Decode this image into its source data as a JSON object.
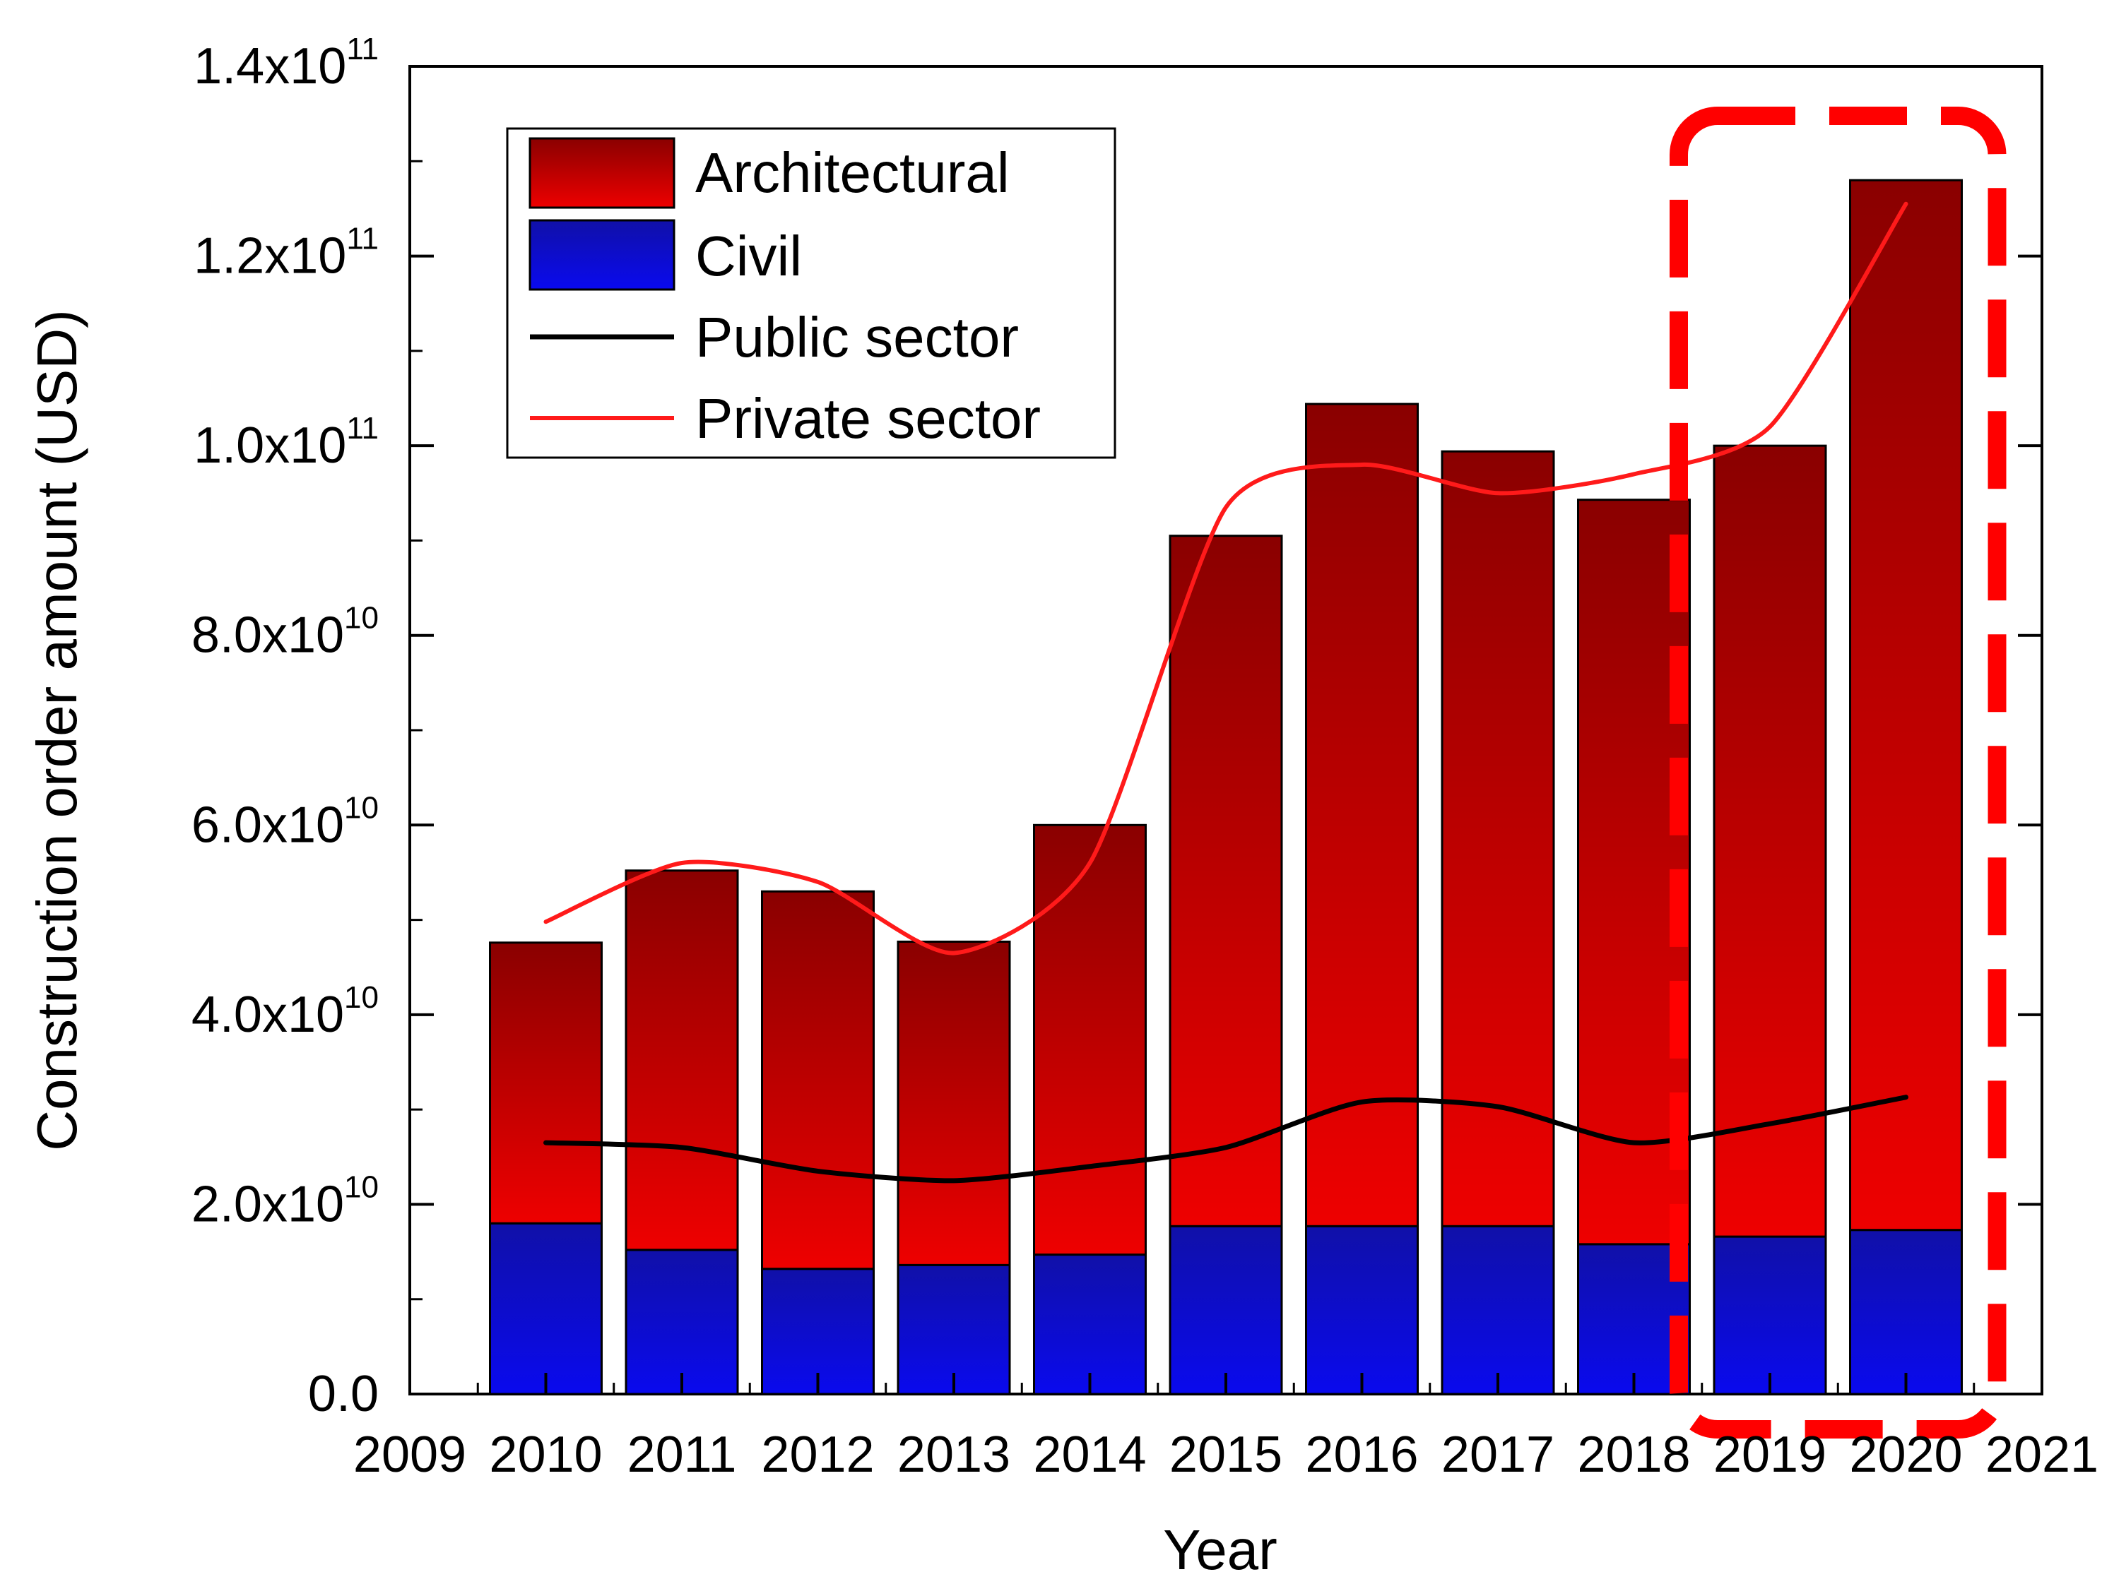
{
  "chart_data": {
    "type": "bar",
    "stacked": true,
    "xlabel": "Year",
    "ylabel": "Construction order amount (USD)",
    "xlim": [
      2009,
      2021
    ],
    "ylim": [
      0,
      140000000000
    ],
    "x_ticks": [
      "2009",
      "2010",
      "2011",
      "2012",
      "2013",
      "2014",
      "2015",
      "2016",
      "2017",
      "2018",
      "2019",
      "2020",
      "2021"
    ],
    "y_ticks": [
      {
        "value": 0,
        "mantissa": "0.0",
        "exponent": ""
      },
      {
        "value": 20000000000,
        "mantissa": "2.0x10",
        "exponent": "10"
      },
      {
        "value": 40000000000,
        "mantissa": "4.0x10",
        "exponent": "10"
      },
      {
        "value": 60000000000,
        "mantissa": "6.0x10",
        "exponent": "10"
      },
      {
        "value": 80000000000,
        "mantissa": "8.0x10",
        "exponent": "10"
      },
      {
        "value": 100000000000,
        "mantissa": "1.0x10",
        "exponent": "11"
      },
      {
        "value": 120000000000,
        "mantissa": "1.2x10",
        "exponent": "11"
      },
      {
        "value": 140000000000,
        "mantissa": "1.4x10",
        "exponent": "11"
      }
    ],
    "x": [
      2010,
      2011,
      2012,
      2013,
      2014,
      2015,
      2016,
      2017,
      2018,
      2019,
      2020
    ],
    "series": [
      {
        "name": "Civil",
        "kind": "bar",
        "color_top": "#1010a8",
        "color_bottom": "#0a0aee",
        "values": [
          18000000000,
          15200000000,
          13200000000,
          13600000000,
          14700000000,
          17700000000,
          17700000000,
          17700000000,
          15800000000,
          16600000000,
          17300000000
        ]
      },
      {
        "name": "Architectural",
        "kind": "bar",
        "color_top": "#8a0000",
        "color_bottom": "#ee0000",
        "values": [
          29600000000,
          40000000000,
          39800000000,
          34100000000,
          45300000000,
          72800000000,
          86700000000,
          81700000000,
          78500000000,
          83400000000,
          110700000000
        ]
      },
      {
        "name": "Public sector",
        "kind": "line",
        "color": "#000000",
        "values": [
          26500000000,
          26000000000,
          23500000000,
          22500000000,
          24000000000,
          26000000000,
          30800000000,
          30300000000,
          26500000000,
          28500000000,
          31300000000
        ]
      },
      {
        "name": "Private sector",
        "kind": "line",
        "color": "#ff1a1a",
        "values": [
          49800000000,
          56000000000,
          54000000000,
          46500000000,
          56000000000,
          93500000000,
          98000000000,
          95000000000,
          97000000000,
          102000000000,
          125500000000
        ]
      }
    ],
    "legend": {
      "position": "top-left",
      "entries": [
        "Architectural",
        "Civil",
        "Public sector",
        "Private sector"
      ]
    },
    "highlight": {
      "style": "dashed-rounded-rectangle",
      "color": "#ff0000",
      "years": [
        2019,
        2020
      ]
    }
  }
}
